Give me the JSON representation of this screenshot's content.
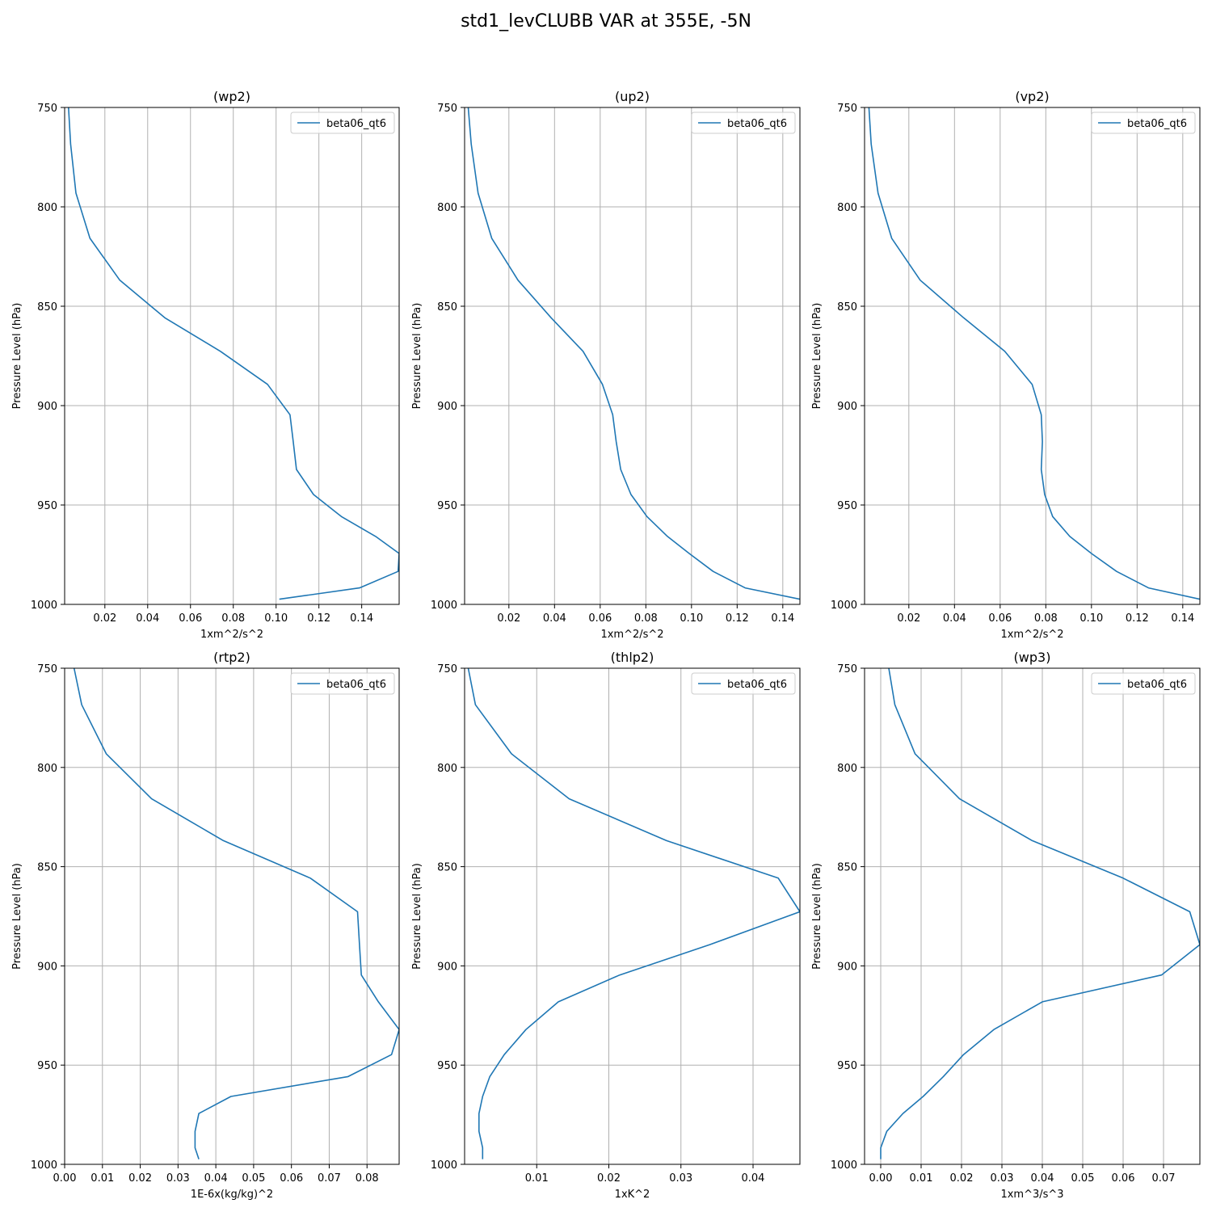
{
  "figure": {
    "title": "std1_levCLUBB VAR at 355E, -5N"
  },
  "style": {
    "line_color": "#1f77b4",
    "grid_color": "#b0b0b0"
  },
  "chart_data": [
    {
      "type": "line",
      "title": "(wp2)",
      "xlabel": "1xm^2/s^2",
      "ylabel": "Pressure Level (hPa)",
      "xlim": [
        0.0012,
        0.1575
      ],
      "ylim": [
        1000,
        750
      ],
      "y_inverted": true,
      "grid": true,
      "legend": "top-right",
      "xticks": [
        0.02,
        0.04,
        0.06,
        0.08,
        0.1,
        0.12,
        0.14
      ],
      "xtick_labels": [
        "0.02",
        "0.04",
        "0.06",
        "0.08",
        "0.10",
        "0.12",
        "0.14"
      ],
      "yticks": [
        750,
        800,
        850,
        900,
        950,
        1000
      ],
      "series": [
        {
          "name": "beta06_qt6",
          "x": [
            0.003,
            0.004,
            0.0065,
            0.013,
            0.027,
            0.048,
            0.074,
            0.096,
            0.1065,
            0.108,
            0.1095,
            0.1175,
            0.1305,
            0.1465,
            0.1575,
            0.157,
            0.139,
            0.1015
          ],
          "y": [
            750,
            768.4,
            793.1,
            815.8,
            836.9,
            855.8,
            872.7,
            889.3,
            904.6,
            918.1,
            932.1,
            944.7,
            955.8,
            965.8,
            974.4,
            983.4,
            991.7,
            997.4
          ]
        }
      ]
    },
    {
      "type": "line",
      "title": "(up2)",
      "xlabel": "1xm^2/s^2",
      "ylabel": "Pressure Level (hPa)",
      "xlim": [
        0.0006,
        0.1475
      ],
      "ylim": [
        1000,
        750
      ],
      "y_inverted": true,
      "grid": true,
      "legend": "top-right",
      "xticks": [
        0.02,
        0.04,
        0.06,
        0.08,
        0.1,
        0.12,
        0.14
      ],
      "xtick_labels": [
        "0.02",
        "0.04",
        "0.06",
        "0.08",
        "0.10",
        "0.12",
        "0.14"
      ],
      "yticks": [
        750,
        800,
        850,
        900,
        950,
        1000
      ],
      "series": [
        {
          "name": "beta06_qt6",
          "x": [
            0.0022,
            0.0035,
            0.0065,
            0.0125,
            0.024,
            0.0385,
            0.0525,
            0.061,
            0.0655,
            0.067,
            0.069,
            0.0735,
            0.0805,
            0.0895,
            0.099,
            0.1095,
            0.1235,
            0.1475
          ],
          "y": [
            750,
            768.4,
            793.1,
            815.8,
            836.9,
            855.8,
            872.7,
            889.3,
            904.6,
            918.1,
            932.1,
            944.7,
            955.8,
            965.8,
            974.4,
            983.4,
            991.7,
            997.4
          ]
        }
      ]
    },
    {
      "type": "line",
      "title": "(vp2)",
      "xlabel": "1xm^2/s^2",
      "ylabel": "Pressure Level (hPa)",
      "xlim": [
        0.0006,
        0.1475
      ],
      "ylim": [
        1000,
        750
      ],
      "y_inverted": true,
      "grid": true,
      "legend": "top-right",
      "xticks": [
        0.02,
        0.04,
        0.06,
        0.08,
        0.1,
        0.12,
        0.14
      ],
      "xtick_labels": [
        "0.02",
        "0.04",
        "0.06",
        "0.08",
        "0.10",
        "0.12",
        "0.14"
      ],
      "yticks": [
        750,
        800,
        850,
        900,
        950,
        1000
      ],
      "series": [
        {
          "name": "beta06_qt6",
          "x": [
            0.0025,
            0.0035,
            0.0065,
            0.0125,
            0.025,
            0.044,
            0.062,
            0.074,
            0.078,
            0.0785,
            0.078,
            0.0795,
            0.083,
            0.0905,
            0.1,
            0.111,
            0.125,
            0.1475
          ],
          "y": [
            750,
            768.4,
            793.1,
            815.8,
            836.9,
            855.8,
            872.7,
            889.3,
            904.6,
            918.1,
            932.1,
            944.7,
            955.8,
            965.8,
            974.4,
            983.4,
            991.7,
            997.4
          ]
        }
      ]
    },
    {
      "type": "line",
      "title": "(rtp2)",
      "xlabel": "1E-6x(kg/kg)^2",
      "ylabel": "Pressure Level (hPa)",
      "xlim": [
        0.0,
        0.0885
      ],
      "ylim": [
        1000,
        750
      ],
      "y_inverted": true,
      "grid": true,
      "legend": "top-right",
      "xticks": [
        0.0,
        0.01,
        0.02,
        0.03,
        0.04,
        0.05,
        0.06,
        0.07,
        0.08
      ],
      "xtick_labels": [
        "0.00",
        "0.01",
        "0.02",
        "0.03",
        "0.04",
        "0.05",
        "0.06",
        "0.07",
        "0.08"
      ],
      "yticks": [
        750,
        800,
        850,
        900,
        950,
        1000
      ],
      "series": [
        {
          "name": "beta06_qt6",
          "x": [
            0.0025,
            0.0045,
            0.011,
            0.023,
            0.042,
            0.065,
            0.0775,
            0.078,
            0.0785,
            0.083,
            0.0885,
            0.0865,
            0.075,
            0.044,
            0.0355,
            0.0345,
            0.0345,
            0.0355
          ],
          "y": [
            750,
            768.4,
            793.1,
            815.8,
            836.9,
            855.8,
            872.7,
            889.3,
            904.6,
            918.1,
            932.1,
            944.7,
            955.8,
            965.8,
            974.4,
            983.4,
            991.7,
            997.4
          ]
        }
      ]
    },
    {
      "type": "line",
      "title": "(thlp2)",
      "xlabel": "1xK^2",
      "ylabel": "Pressure Level (hPa)",
      "xlim": [
        0.0,
        0.0465
      ],
      "ylim": [
        1000,
        750
      ],
      "y_inverted": true,
      "grid": true,
      "legend": "top-right",
      "xticks": [
        0.01,
        0.02,
        0.03,
        0.04
      ],
      "xtick_labels": [
        "0.01",
        "0.02",
        "0.03",
        "0.04"
      ],
      "yticks": [
        750,
        800,
        850,
        900,
        950,
        1000
      ],
      "series": [
        {
          "name": "beta06_qt6",
          "x": [
            0.0005,
            0.0015,
            0.0065,
            0.0145,
            0.028,
            0.0435,
            0.0465,
            0.034,
            0.0215,
            0.013,
            0.0085,
            0.0055,
            0.0035,
            0.0025,
            0.002,
            0.002,
            0.0025,
            0.0025
          ],
          "y": [
            750,
            768.4,
            793.1,
            815.8,
            836.9,
            855.8,
            872.7,
            889.3,
            904.6,
            918.1,
            932.1,
            944.7,
            955.8,
            965.8,
            974.4,
            983.4,
            991.7,
            997.4
          ]
        }
      ]
    },
    {
      "type": "line",
      "title": "(wp3)",
      "xlabel": "1xm^3/s^3",
      "ylabel": "Pressure Level (hPa)",
      "xlim": [
        -0.004,
        0.079
      ],
      "ylim": [
        1000,
        750
      ],
      "y_inverted": true,
      "grid": true,
      "legend": "top-right",
      "xticks": [
        0.0,
        0.01,
        0.02,
        0.03,
        0.04,
        0.05,
        0.06,
        0.07
      ],
      "xtick_labels": [
        "0.00",
        "0.01",
        "0.02",
        "0.03",
        "0.04",
        "0.05",
        "0.06",
        "0.07"
      ],
      "yticks": [
        750,
        800,
        850,
        900,
        950,
        1000
      ],
      "series": [
        {
          "name": "beta06_qt6",
          "x": [
            0.002,
            0.0035,
            0.0085,
            0.0195,
            0.0375,
            0.06,
            0.0765,
            0.079,
            0.0695,
            0.04,
            0.028,
            0.0205,
            0.0155,
            0.0105,
            0.0055,
            0.0015,
            0.0,
            0.0
          ],
          "y": [
            750,
            768.4,
            793.1,
            815.8,
            836.9,
            855.8,
            872.7,
            889.3,
            904.6,
            918.1,
            932.1,
            944.7,
            955.8,
            965.8,
            974.4,
            983.4,
            991.7,
            997.4
          ]
        }
      ]
    }
  ]
}
